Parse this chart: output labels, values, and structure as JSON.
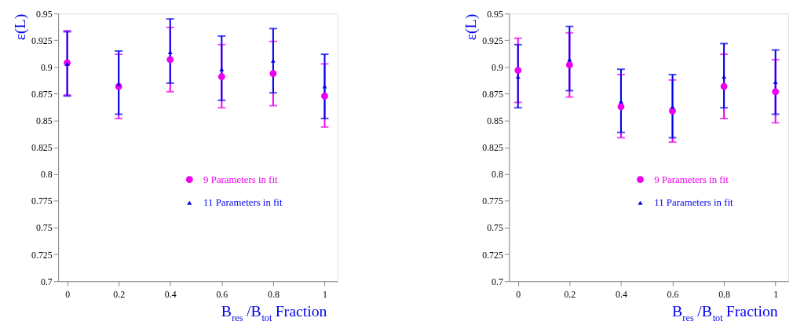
{
  "chart_data": [
    {
      "type": "scatter",
      "xlabel": "B$_{res}$/B$_{tot}$ Fraction",
      "ylabel": "ε(L)",
      "x": [
        0,
        0.2,
        0.4,
        0.6,
        0.8,
        1
      ],
      "xlim": [
        -0.035,
        1.05
      ],
      "xticks": [
        0,
        0.2,
        0.4,
        0.6,
        0.8,
        1
      ],
      "ylim": [
        0.7,
        0.95
      ],
      "yticks": [
        0.7,
        0.725,
        0.75,
        0.775,
        0.8,
        0.825,
        0.85,
        0.875,
        0.9,
        0.925,
        0.95
      ],
      "grid": false,
      "legend": "bottom right",
      "series": [
        {
          "name": "9 Parameters in fit",
          "color": "#ee00ee",
          "marker": "circle",
          "values": [
            0.904,
            0.882,
            0.907,
            0.891,
            0.894,
            0.873
          ],
          "errors": [
            [
              0.874,
              0.934
            ],
            [
              0.852,
              0.912
            ],
            [
              0.877,
              0.937
            ],
            [
              0.862,
              0.921
            ],
            [
              0.864,
              0.924
            ],
            [
              0.844,
              0.903
            ]
          ]
        },
        {
          "name": "11 Parameters in fit",
          "color": "#0000ee",
          "marker": "triangle",
          "values": [
            0.903,
            0.884,
            0.914,
            0.898,
            0.906,
            0.882
          ],
          "errors": [
            [
              0.873,
              0.933
            ],
            [
              0.856,
              0.915
            ],
            [
              0.885,
              0.945
            ],
            [
              0.869,
              0.929
            ],
            [
              0.876,
              0.936
            ],
            [
              0.852,
              0.912
            ]
          ]
        }
      ]
    },
    {
      "type": "scatter",
      "xlabel": "B$_{res}$/B$_{tot}$ Fraction",
      "ylabel": "ε(L)",
      "x": [
        0,
        0.2,
        0.4,
        0.6,
        0.8,
        1
      ],
      "xlim": [
        -0.035,
        1.05
      ],
      "xticks": [
        0,
        0.2,
        0.4,
        0.6,
        0.8,
        1
      ],
      "ylim": [
        0.7,
        0.95
      ],
      "yticks": [
        0.7,
        0.725,
        0.75,
        0.775,
        0.8,
        0.825,
        0.85,
        0.875,
        0.9,
        0.925,
        0.95
      ],
      "grid": false,
      "legend": "bottom right",
      "series": [
        {
          "name": "9 Parameters in fit",
          "color": "#ee00ee",
          "marker": "circle",
          "values": [
            0.897,
            0.902,
            0.863,
            0.859,
            0.882,
            0.877
          ],
          "errors": [
            [
              0.867,
              0.927
            ],
            [
              0.872,
              0.932
            ],
            [
              0.834,
              0.893
            ],
            [
              0.83,
              0.888
            ],
            [
              0.852,
              0.912
            ],
            [
              0.848,
              0.907
            ]
          ]
        },
        {
          "name": "11 Parameters in fit",
          "color": "#0000ee",
          "marker": "triangle",
          "values": [
            0.891,
            0.907,
            0.868,
            0.863,
            0.891,
            0.886
          ],
          "errors": [
            [
              0.862,
              0.921
            ],
            [
              0.878,
              0.938
            ],
            [
              0.839,
              0.898
            ],
            [
              0.834,
              0.893
            ],
            [
              0.862,
              0.922
            ],
            [
              0.856,
              0.916
            ]
          ]
        }
      ]
    }
  ]
}
